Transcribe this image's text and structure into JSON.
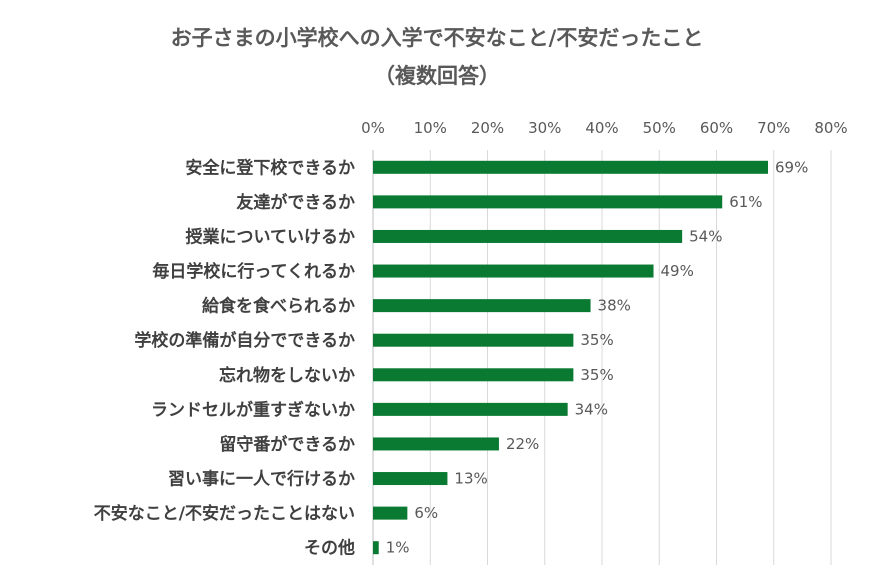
{
  "chart_data": {
    "type": "bar",
    "orientation": "horizontal",
    "title_line1": "お子さまの小学校への入学で不安なこと/不安だったこと",
    "title_line2": "（複数回答）",
    "categories": [
      "安全に登下校できるか",
      "友達ができるか",
      "授業についていけるか",
      "毎日学校に行ってくれるか",
      "給食を食べられるか",
      "学校の準備が自分でできるか",
      "忘れ物をしないか",
      "ランドセルが重すぎないか",
      "留守番ができるか",
      "習い事に一人で行けるか",
      "不安なこと/不安だったことはない",
      "その他"
    ],
    "values": [
      69,
      61,
      54,
      49,
      38,
      35,
      35,
      34,
      22,
      13,
      6,
      1
    ],
    "data_labels": [
      "69%",
      "61%",
      "54%",
      "49%",
      "38%",
      "35%",
      "35%",
      "34%",
      "22%",
      "13%",
      "6%",
      "1%"
    ],
    "xlim": [
      0,
      80
    ],
    "x_ticks": [
      0,
      10,
      20,
      30,
      40,
      50,
      60,
      70,
      80
    ],
    "x_tick_labels": [
      "0%",
      "10%",
      "20%",
      "30%",
      "40%",
      "50%",
      "60%",
      "70%",
      "80%"
    ],
    "axis_position": "top",
    "grid": true,
    "legend": "none",
    "bar_color": "#0a7a32",
    "grid_color": "#d9d9d9"
  }
}
